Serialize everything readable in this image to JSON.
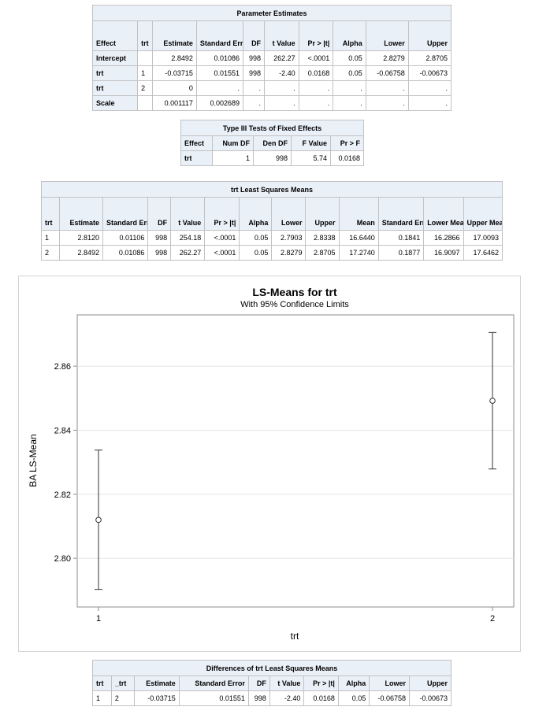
{
  "param_table": {
    "title": "Parameter Estimates",
    "headers": [
      "Effect",
      "trt",
      "Estimate",
      "Standard Error",
      "DF",
      "t Value",
      "Pr > |t|",
      "Alpha",
      "Lower",
      "Upper"
    ],
    "rows": [
      [
        "Intercept",
        "",
        "2.8492",
        "0.01086",
        "998",
        "262.27",
        "<.0001",
        "0.05",
        "2.8279",
        "2.8705"
      ],
      [
        "trt",
        "1",
        "-0.03715",
        "0.01551",
        "998",
        "-2.40",
        "0.0168",
        "0.05",
        "-0.06758",
        "-0.00673"
      ],
      [
        "trt",
        "2",
        "0",
        ".",
        ".",
        ".",
        ".",
        ".",
        ".",
        "."
      ],
      [
        "Scale",
        "",
        "0.001117",
        "0.002689",
        ".",
        ".",
        ".",
        ".",
        ".",
        "."
      ]
    ]
  },
  "type3_table": {
    "title": "Type III Tests of Fixed Effects",
    "headers": [
      "Effect",
      "Num DF",
      "Den DF",
      "F Value",
      "Pr > F"
    ],
    "rows": [
      [
        "trt",
        "1",
        "998",
        "5.74",
        "0.0168"
      ]
    ]
  },
  "lsmeans_table": {
    "title": "trt Least Squares Means",
    "headers": [
      "trt",
      "Estimate",
      "Standard Error",
      "DF",
      "t Value",
      "Pr > |t|",
      "Alpha",
      "Lower",
      "Upper",
      "Mean",
      "Standard Error Mean",
      "Lower Mean",
      "Upper Mean"
    ],
    "rows": [
      [
        "1",
        "2.8120",
        "0.01106",
        "998",
        "254.18",
        "<.0001",
        "0.05",
        "2.7903",
        "2.8338",
        "16.6440",
        "0.1841",
        "16.2866",
        "17.0093"
      ],
      [
        "2",
        "2.8492",
        "0.01086",
        "998",
        "262.27",
        "<.0001",
        "0.05",
        "2.8279",
        "2.8705",
        "17.2740",
        "0.1877",
        "16.9097",
        "17.6462"
      ]
    ]
  },
  "diff_table": {
    "title": "Differences of trt Least Squares Means",
    "headers": [
      "trt",
      "_trt",
      "Estimate",
      "Standard Error",
      "DF",
      "t Value",
      "Pr > |t|",
      "Alpha",
      "Lower",
      "Upper"
    ],
    "rows": [
      [
        "1",
        "2",
        "-0.03715",
        "0.01551",
        "998",
        "-2.40",
        "0.0168",
        "0.05",
        "-0.06758",
        "-0.00673"
      ]
    ]
  },
  "chart_data": {
    "type": "scatter",
    "title": "LS-Means for trt",
    "subtitle": "With 95% Confidence Limits",
    "xlabel": "trt",
    "ylabel": "BA LS-Mean",
    "categories": [
      "1",
      "2"
    ],
    "values": [
      2.812,
      2.8492
    ],
    "lower": [
      2.7903,
      2.8279
    ],
    "upper": [
      2.8338,
      2.8705
    ],
    "yticks": [
      "2.80",
      "2.82",
      "2.84",
      "2.86"
    ],
    "ylim": [
      2.7848,
      2.876
    ],
    "grid": true,
    "legend": "none",
    "colors": {
      "marker": "#333333",
      "grid": "#e4e4e4",
      "frame": "#8c8c8c"
    }
  }
}
